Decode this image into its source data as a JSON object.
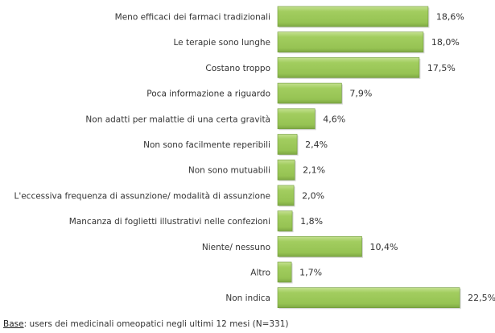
{
  "chart_data": {
    "type": "bar",
    "orientation": "horizontal",
    "categories": [
      "Meno efficaci dei farmaci tradizionali",
      "Le terapie sono lunghe",
      "Costano troppo",
      "Poca informazione a riguardo",
      "Non adatti per malattie di una certa gravità",
      "Non sono facilmente reperibili",
      "Non sono mutuabili",
      "L'eccessiva frequenza di assunzione/ modalità di assunzione",
      "Mancanza di foglietti illustrativi nelle confezioni",
      "Niente/ nessuno",
      "Altro",
      "Non indica"
    ],
    "values": [
      18.6,
      18.0,
      17.5,
      7.9,
      4.6,
      2.4,
      2.1,
      2.0,
      1.8,
      10.4,
      1.7,
      22.5
    ],
    "value_labels": [
      "18,6%",
      "18,0%",
      "17,5%",
      "7,9%",
      "4,6%",
      "2,4%",
      "2,1%",
      "2,0%",
      "1,8%",
      "10,4%",
      "1,7%",
      "22,5%"
    ],
    "unit": "%",
    "bar_color": "#9bc85a",
    "bar_edge_color": "#6f9a3a",
    "grid": false
  },
  "footer": {
    "base_label": "Base",
    "base_text": ": users dei medicinali omeopatici negli ultimi 12 mesi (N=331)"
  }
}
